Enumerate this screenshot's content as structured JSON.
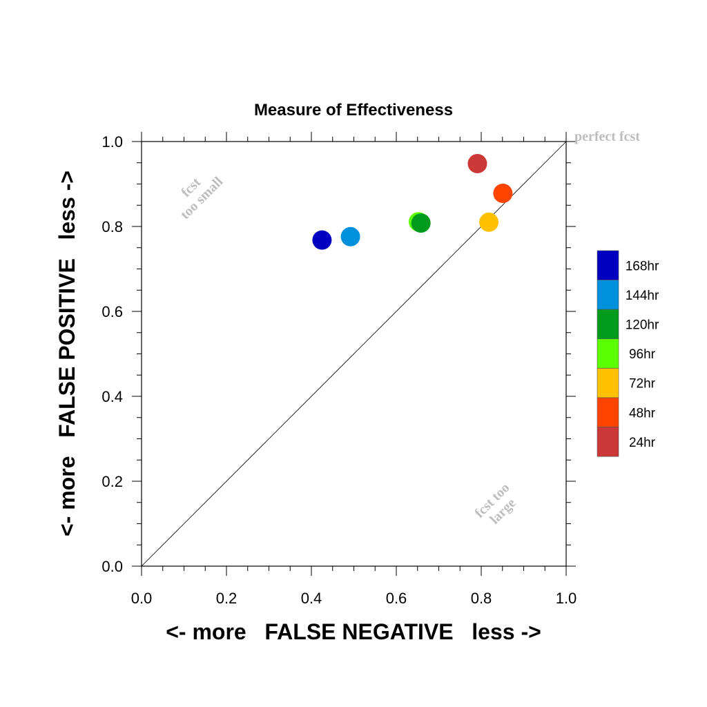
{
  "chart_data": {
    "type": "scatter",
    "title": "Measure of Effectiveness",
    "xlabel": "<- more   FALSE NEGATIVE   less ->",
    "ylabel": "<- more   FALSE POSITIVE   less ->",
    "xlim": [
      0.0,
      1.0
    ],
    "ylim": [
      0.0,
      1.0
    ],
    "xticks": [
      "0.0",
      "0.2",
      "0.4",
      "0.6",
      "0.8",
      "1.0"
    ],
    "yticks": [
      "0.0",
      "0.2",
      "0.4",
      "0.6",
      "0.8",
      "1.0"
    ],
    "grid": false,
    "legend_placement": "right",
    "reference_line": "diagonal y = x",
    "annotations": {
      "perfect": "perfect fcst",
      "small_line1": "fcst",
      "small_line2": "too small",
      "large_line1": "fcst too",
      "large_line2": "large"
    },
    "series": [
      {
        "name": "168hr",
        "color": "#0000c0",
        "x": 0.425,
        "y": 0.768
      },
      {
        "name": "144hr",
        "color": "#0090dc",
        "x": 0.492,
        "y": 0.776
      },
      {
        "name": "120hr",
        "color": "#009a1c",
        "x": 0.658,
        "y": 0.808
      },
      {
        "name": "96hr",
        "color": "#5cff00",
        "x": 0.652,
        "y": 0.811
      },
      {
        "name": "72hr",
        "color": "#ffc000",
        "x": 0.818,
        "y": 0.81
      },
      {
        "name": "48hr",
        "color": "#ff4400",
        "x": 0.851,
        "y": 0.878
      },
      {
        "name": "24hr",
        "color": "#cc3838",
        "x": 0.791,
        "y": 0.948
      }
    ]
  }
}
